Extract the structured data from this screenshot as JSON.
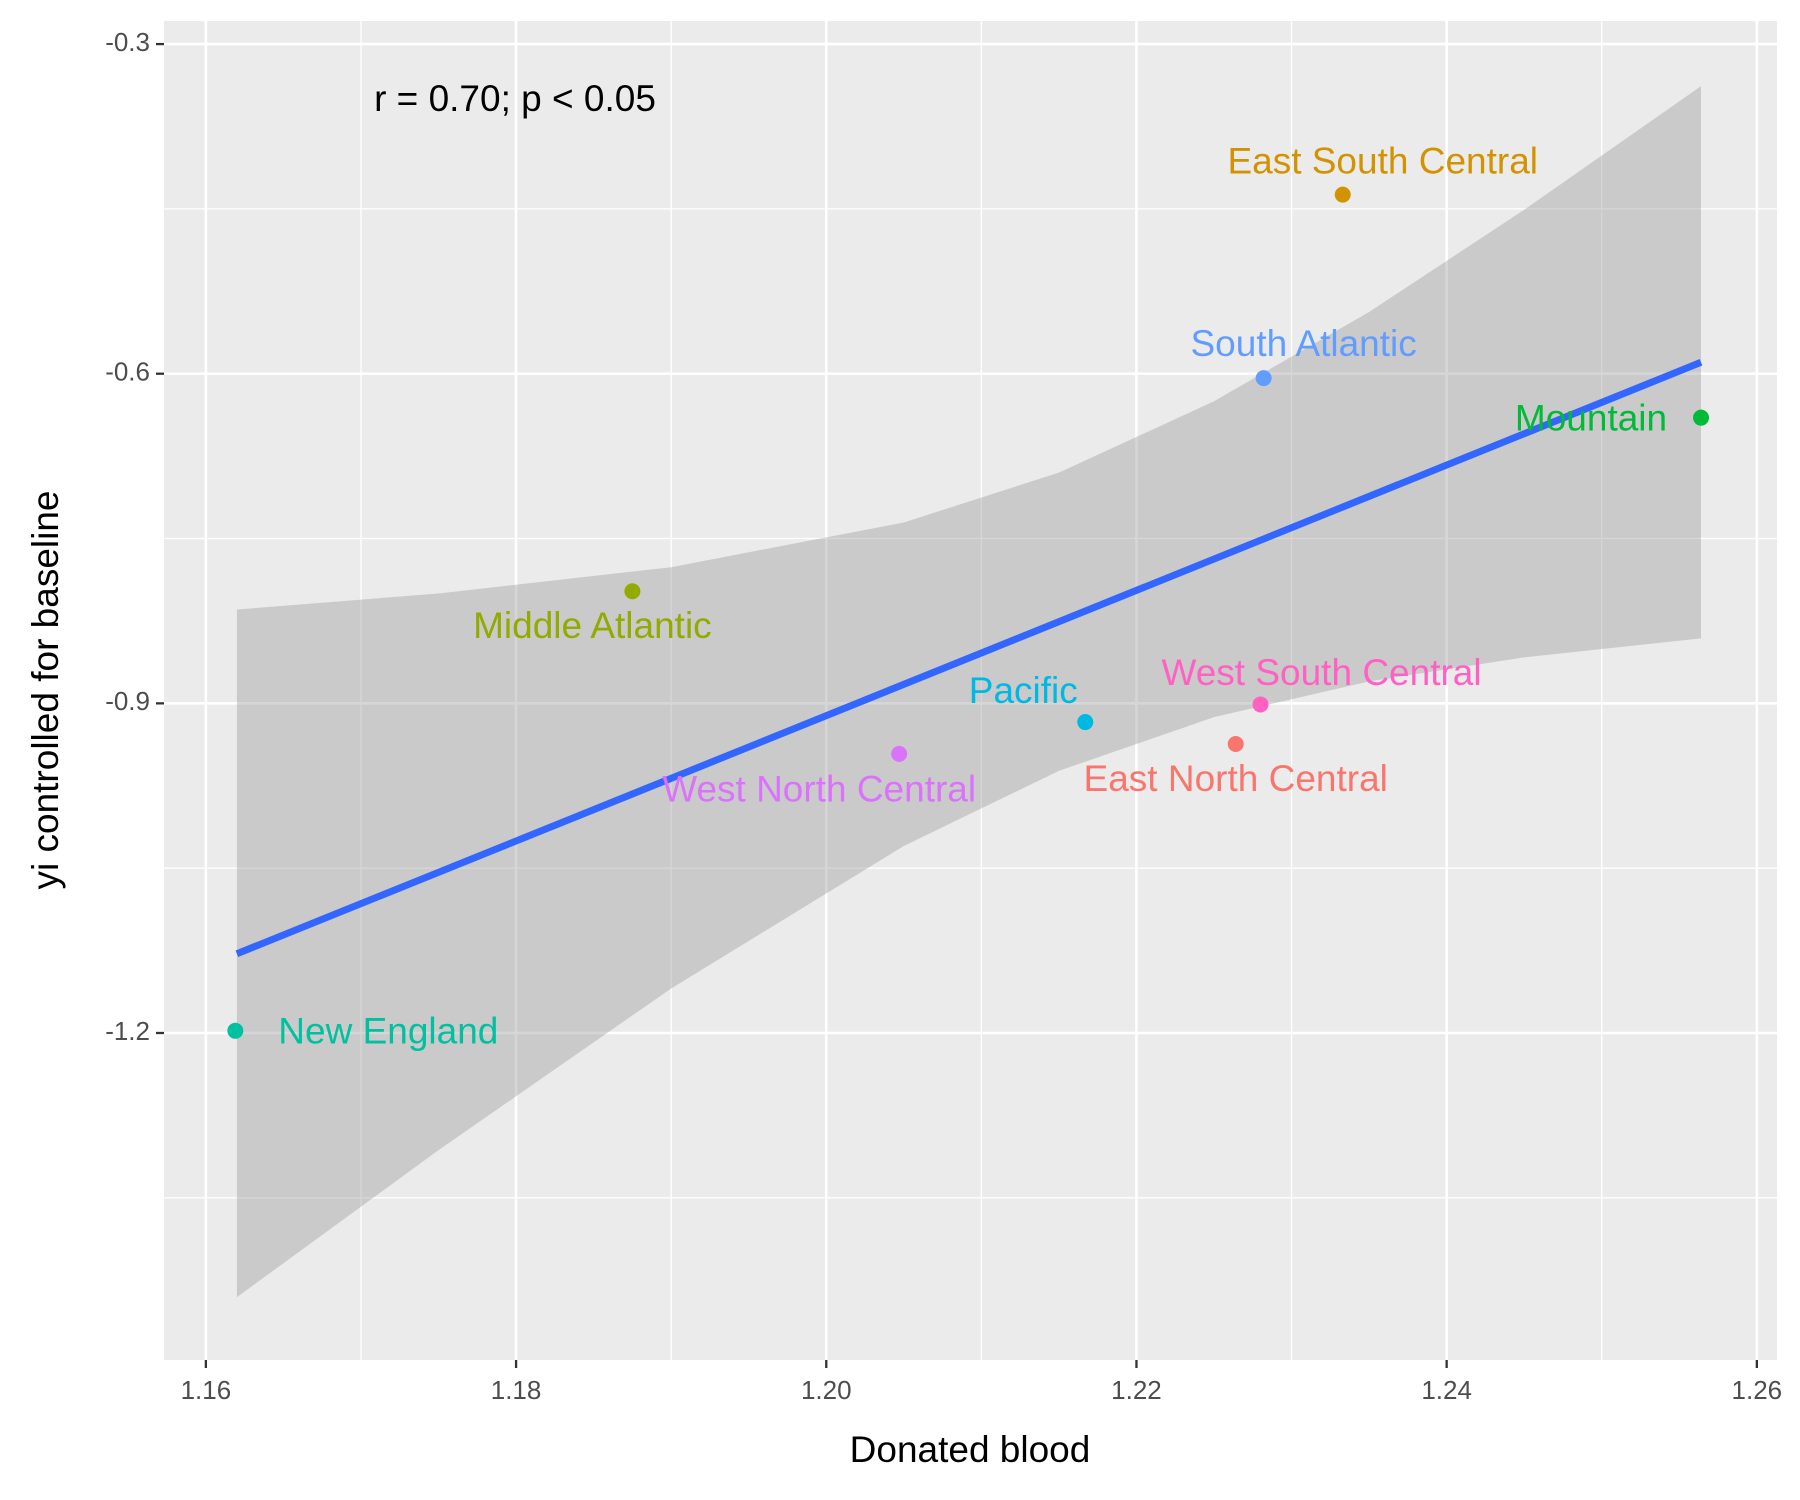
{
  "chart_data": {
    "type": "scatter",
    "annotation": "r = 0.70; p < 0.05",
    "x_label": "Donated blood",
    "y_label": "yi controlled for baseline",
    "xlim": [
      1.1573,
      1.2613
    ],
    "ylim": [
      -1.4976,
      -0.279
    ],
    "xticks": [
      1.16,
      1.18,
      {
        "value": 1.2,
        "label": "1.20"
      },
      1.22,
      1.24,
      1.26
    ],
    "yticks": [
      -0.3,
      -0.6,
      -0.9,
      -1.2
    ],
    "grid": true,
    "series": [
      {
        "name": "East North Central",
        "color": "#F8766D",
        "x": [
          1.2264
        ],
        "values": [
          -0.937
        ]
      },
      {
        "name": "East South Central",
        "color": "#D39200",
        "x": [
          1.2333
        ],
        "values": [
          -0.437
        ]
      },
      {
        "name": "Middle Atlantic",
        "color": "#93AA00",
        "x": [
          1.1875
        ],
        "values": [
          -0.798
        ]
      },
      {
        "name": "Mountain",
        "color": "#00BA38",
        "x": [
          1.2564
        ],
        "values": [
          -0.64
        ]
      },
      {
        "name": "New England",
        "color": "#00C19F",
        "x": [
          1.1619
        ],
        "values": [
          -1.198
        ]
      },
      {
        "name": "Pacific",
        "color": "#00B9E3",
        "x": [
          1.2167
        ],
        "values": [
          -0.917
        ]
      },
      {
        "name": "South Atlantic",
        "color": "#619CFF",
        "x": [
          1.2282
        ],
        "values": [
          -0.604
        ]
      },
      {
        "name": "West North Central",
        "color": "#DB72FB",
        "x": [
          1.2047
        ],
        "values": [
          -0.946
        ]
      },
      {
        "name": "West South Central",
        "color": "#FF61C3",
        "x": [
          1.228
        ],
        "values": [
          -0.901
        ]
      }
    ],
    "fit": {
      "color": "#3366FF",
      "x": [
        1.162,
        1.2564
      ],
      "values": [
        -1.1279,
        -0.5896
      ]
    },
    "ci": {
      "color": "#999999",
      "x": [
        1.162,
        1.175,
        1.19,
        1.205,
        1.215,
        1.225,
        1.235,
        1.245,
        1.2564
      ],
      "lower": [
        -1.4404,
        -1.3066,
        -1.1595,
        -1.0298,
        -0.9614,
        -0.9125,
        -0.88,
        -0.8581,
        -0.8409
      ],
      "upper": [
        -0.8146,
        -0.8,
        -0.7761,
        -0.7354,
        -0.69,
        -0.6251,
        -0.5438,
        -0.4508,
        -0.3383
      ]
    }
  }
}
